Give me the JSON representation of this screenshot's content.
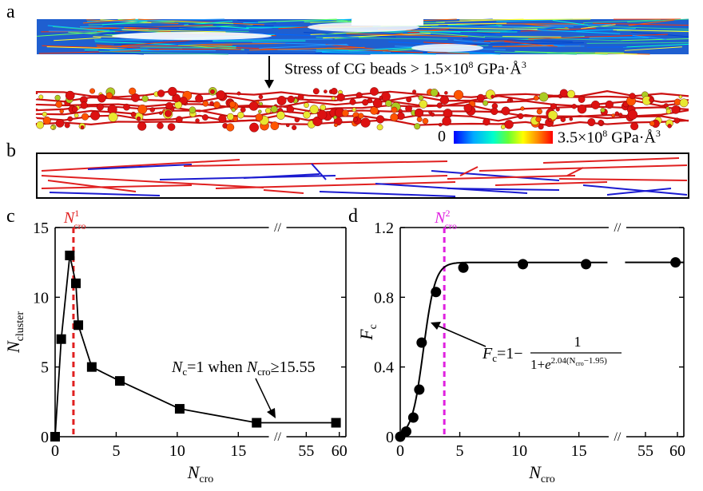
{
  "panels": {
    "a": {
      "label": "a",
      "annotation_pre": "Stress of CG beads > 1.5×10",
      "annotation_exp": "8",
      "annotation_post": " GPa·Å",
      "annotation_unit_exp": "3",
      "colorbar_min": "0",
      "colorbar_max_pre": "3.5×10",
      "colorbar_max_exp": "8",
      "colorbar_max_post": " GPa·Å",
      "colorbar_max_unit_exp": "3",
      "colorbar_colors": [
        "#0000ff",
        "#00aaff",
        "#00ffcc",
        "#66ff33",
        "#ffff00",
        "#ff8800",
        "#ff0000"
      ]
    },
    "b": {
      "label": "b",
      "colors": {
        "red": "#e02020",
        "blue": "#1a1ad0"
      }
    },
    "c": {
      "label": "c"
    },
    "d": {
      "label": "d"
    }
  },
  "chart_data": [
    {
      "type": "scatter",
      "panel": "c",
      "xlabel": "N",
      "xlabel_sub": "cro",
      "ylabel": "N",
      "ylabel_sub": "cluster",
      "ylim": [
        0,
        15
      ],
      "yticks": [
        0,
        5,
        10,
        15
      ],
      "x_segments": [
        {
          "range": [
            0,
            17.5
          ],
          "ticks": [
            0,
            5,
            10,
            15
          ]
        },
        {
          "range": [
            52,
            61
          ],
          "ticks": [
            55,
            60
          ]
        }
      ],
      "x_break": "//",
      "points": [
        [
          0,
          0
        ],
        [
          0.5,
          7
        ],
        [
          1.2,
          13
        ],
        [
          1.7,
          11
        ],
        [
          1.9,
          8
        ],
        [
          3,
          5
        ],
        [
          5.3,
          4
        ],
        [
          10.2,
          2
        ],
        [
          16.5,
          1
        ],
        [
          59.5,
          1
        ]
      ],
      "vline": {
        "x": 1.5,
        "label": "N",
        "label_sub": "cro",
        "label_sup": "1",
        "color": "#e02020",
        "style": "dashed"
      },
      "annotation": {
        "pre": "N",
        "pre_sub": "c",
        "mid": "=1 when ",
        "n": "N",
        "n_sub": "cro",
        "post": "≥15.55"
      }
    },
    {
      "type": "scatter",
      "panel": "d",
      "xlabel": "N",
      "xlabel_sub": "cro",
      "ylabel": "F",
      "ylabel_sub": "c",
      "ylim": [
        0,
        1.2
      ],
      "yticks": [
        "0",
        "0.4",
        "0.8",
        "1.2"
      ],
      "x_segments": [
        {
          "range": [
            0,
            17.5
          ],
          "ticks": [
            0,
            5,
            10,
            15
          ]
        },
        {
          "range": [
            52,
            61
          ],
          "ticks": [
            55,
            60
          ]
        }
      ],
      "x_break": "//",
      "points": [
        [
          0,
          0
        ],
        [
          0.5,
          0.03
        ],
        [
          1.1,
          0.11
        ],
        [
          1.6,
          0.27
        ],
        [
          1.8,
          0.54
        ],
        [
          3.0,
          0.83
        ],
        [
          5.3,
          0.97
        ],
        [
          10.3,
          0.99
        ],
        [
          15.6,
          0.99
        ],
        [
          59.7,
          1.0
        ]
      ],
      "fit": {
        "a": 2.04,
        "b": 1.95
      },
      "vline": {
        "x": 3.7,
        "label": "N",
        "label_sub": "cro",
        "label_sup": "2",
        "color": "#e020e0",
        "style": "dashed"
      },
      "equation": {
        "lhs": "F",
        "lhs_sub": "c",
        "eq": "=1−",
        "num": "1",
        "den_pre": "1+",
        "den_e": "e",
        "den_exp": "2.04(N",
        "den_exp_sub": "cro",
        "den_exp_post": "−1.95)"
      }
    }
  ]
}
